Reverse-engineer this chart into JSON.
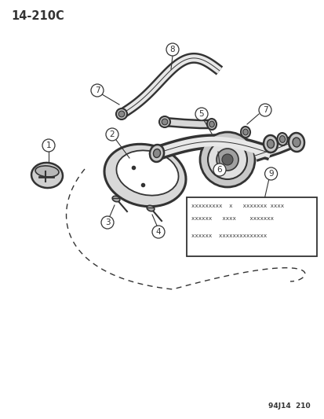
{
  "title": "14-210C",
  "footer": "94J14  210",
  "background_color": "#ffffff",
  "line_color": "#333333",
  "text_color": "#333333",
  "label_box_text_line1": "xxxxxxxxx  x   xxxxxxx xxxx",
  "label_box_text_line2": "xxxxxx   xxxx    xxxxxxx",
  "label_box_text_line3": "xxxxxx  xxxxxxxxxxxxxx",
  "fig_width": 4.14,
  "fig_height": 5.33,
  "dpi": 100
}
